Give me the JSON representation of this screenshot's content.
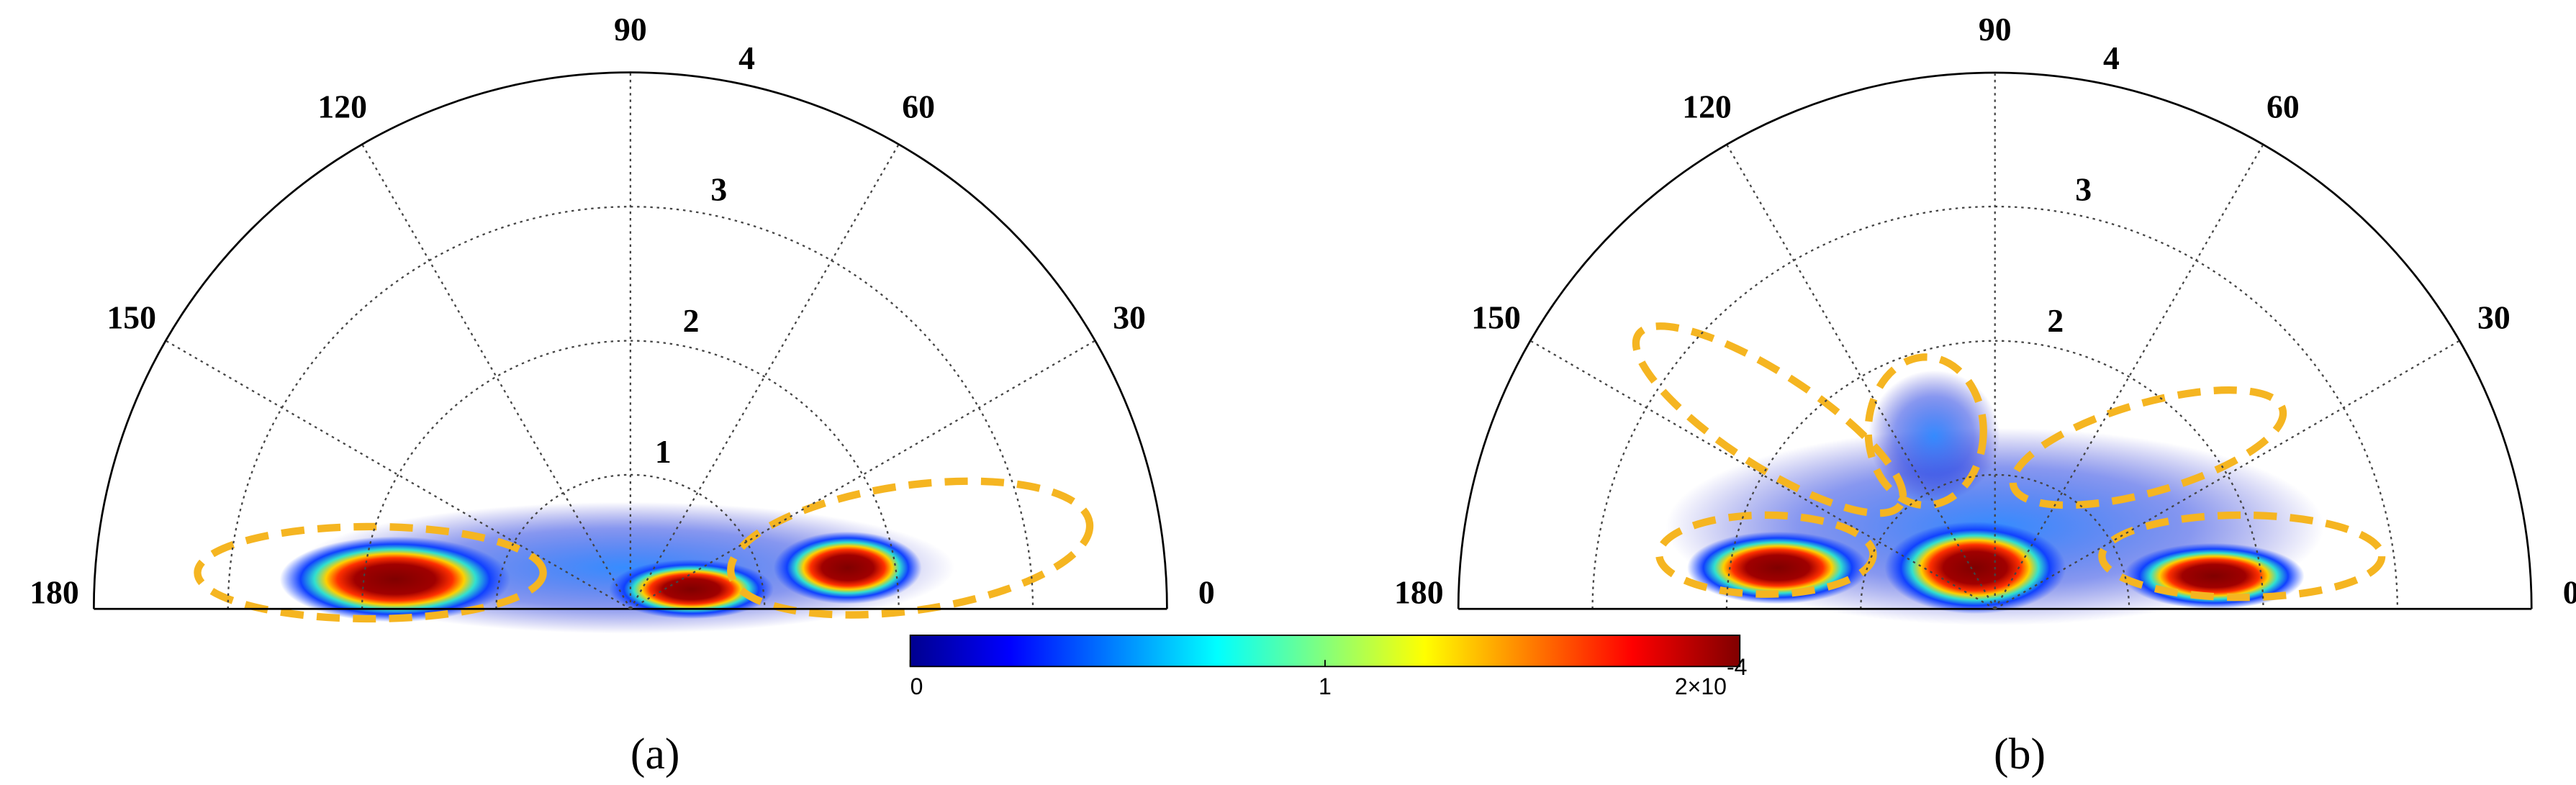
{
  "chart_data": [
    {
      "type": "polar-density",
      "label": "(a)",
      "rlim": [
        0,
        4
      ],
      "rticks": [
        1,
        2,
        3,
        4
      ],
      "rgrid": [
        1,
        2,
        3
      ],
      "thetaticks": [
        0,
        30,
        60,
        90,
        120,
        150,
        180
      ]
    },
    {
      "type": "polar-density",
      "label": "(b)",
      "rlim": [
        0,
        4
      ],
      "rticks": [
        2,
        3,
        4
      ],
      "rgrid": [
        1,
        2,
        3
      ],
      "thetaticks": [
        0,
        30,
        60,
        90,
        120,
        150,
        180
      ]
    }
  ],
  "colorbar": {
    "clim": [
      0,
      2
    ],
    "ticks": [
      0,
      1,
      {
        "value": 2,
        "label": "2×10"
      }
    ],
    "exponent": "-4"
  }
}
